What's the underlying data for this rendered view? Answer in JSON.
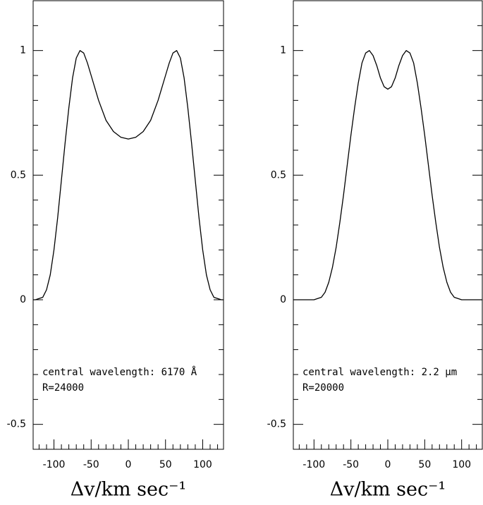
{
  "chart_data": [
    {
      "type": "line",
      "xlabel": "Δv/km sec⁻¹",
      "annotations": [
        "central wavelength: 6170 Å",
        "R=24000"
      ],
      "xlim": [
        -128,
        128
      ],
      "ylim": [
        -0.6,
        1.2
      ],
      "xticks": [
        -100,
        -50,
        0,
        50,
        100
      ],
      "yticks": [
        {
          "value": -0.5,
          "label": "-0.5"
        },
        0,
        0.5,
        1
      ],
      "xminorticks": [
        -120,
        -110,
        -90,
        -80,
        -70,
        -60,
        -40,
        -30,
        -20,
        -10,
        10,
        20,
        30,
        40,
        60,
        70,
        80,
        90,
        110,
        120
      ],
      "yminorticks": [
        -0.6,
        -0.4,
        -0.3,
        -0.2,
        -0.1,
        0.1,
        0.2,
        0.3,
        0.4,
        0.6,
        0.7,
        0.8,
        0.9,
        1.1,
        1.2
      ],
      "series": [
        {
          "color": "#000000",
          "x": [
            -128,
            -125,
            -115,
            -110,
            -105,
            -100,
            -95,
            -90,
            -85,
            -80,
            -75,
            -70,
            -65,
            -60,
            -55,
            -50,
            -40,
            -30,
            -20,
            -10,
            0,
            10,
            20,
            30,
            40,
            50,
            55,
            60,
            65,
            70,
            75,
            80,
            85,
            90,
            95,
            100,
            105,
            110,
            115,
            125,
            128
          ],
          "values": [
            0,
            0,
            0.01,
            0.04,
            0.1,
            0.2,
            0.33,
            0.48,
            0.63,
            0.77,
            0.89,
            0.97,
            1.0,
            0.99,
            0.95,
            0.9,
            0.8,
            0.72,
            0.675,
            0.652,
            0.645,
            0.652,
            0.675,
            0.72,
            0.8,
            0.9,
            0.95,
            0.99,
            1.0,
            0.97,
            0.89,
            0.77,
            0.63,
            0.48,
            0.33,
            0.2,
            0.1,
            0.04,
            0.01,
            0,
            0
          ]
        }
      ]
    },
    {
      "type": "line",
      "xlabel": "Δv/km sec⁻¹",
      "annotations": [
        "central wavelength: 2.2 μm",
        "R=20000"
      ],
      "xlim": [
        -128,
        128
      ],
      "ylim": [
        -0.6,
        1.2
      ],
      "xticks": [
        -100,
        -50,
        0,
        50,
        100
      ],
      "yticks": [
        {
          "value": -0.5,
          "label": "-0.5"
        },
        0,
        0.5,
        1
      ],
      "xminorticks": [
        -120,
        -110,
        -90,
        -80,
        -70,
        -60,
        -40,
        -30,
        -20,
        -10,
        10,
        20,
        30,
        40,
        60,
        70,
        80,
        90,
        110,
        120
      ],
      "yminorticks": [
        -0.6,
        -0.4,
        -0.3,
        -0.2,
        -0.1,
        0.1,
        0.2,
        0.3,
        0.4,
        0.6,
        0.7,
        0.8,
        0.9,
        1.1,
        1.2
      ],
      "series": [
        {
          "color": "#000000",
          "x": [
            -128,
            -100,
            -90,
            -85,
            -80,
            -75,
            -70,
            -65,
            -60,
            -55,
            -50,
            -45,
            -40,
            -35,
            -30,
            -25,
            -20,
            -15,
            -10,
            -5,
            0,
            5,
            10,
            15,
            20,
            25,
            30,
            35,
            40,
            45,
            50,
            55,
            60,
            65,
            70,
            75,
            80,
            85,
            90,
            100,
            128
          ],
          "values": [
            0,
            0,
            0.01,
            0.03,
            0.07,
            0.13,
            0.21,
            0.31,
            0.42,
            0.54,
            0.66,
            0.77,
            0.87,
            0.95,
            0.99,
            1.0,
            0.98,
            0.94,
            0.89,
            0.855,
            0.845,
            0.855,
            0.89,
            0.94,
            0.98,
            1.0,
            0.99,
            0.95,
            0.87,
            0.77,
            0.66,
            0.54,
            0.42,
            0.31,
            0.21,
            0.13,
            0.07,
            0.03,
            0.01,
            0,
            0
          ]
        }
      ]
    }
  ]
}
